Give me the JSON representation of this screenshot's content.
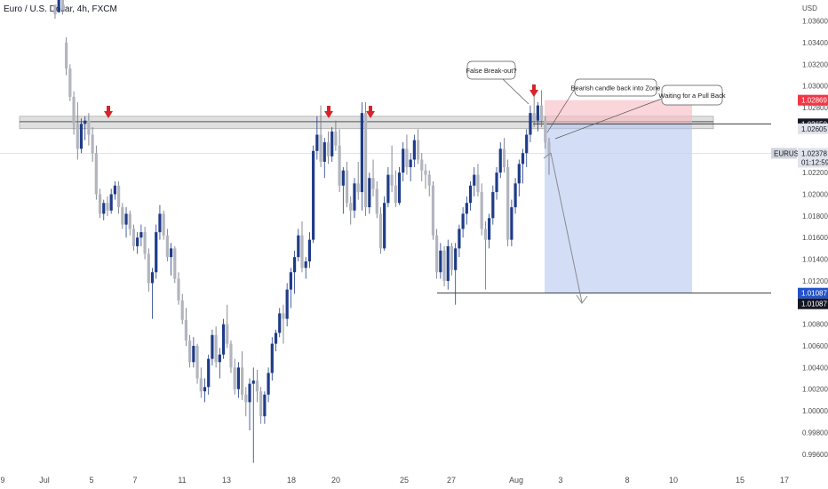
{
  "header": {
    "title": "Euro / U.S. Dollar, 4h, FXCM",
    "currency": "USD"
  },
  "annotations": {
    "false_breakout": "False Break-out?",
    "bearish_candle": "Bearish candle back into Zone",
    "waiting_pullback": "Waiting for a Pull Back"
  },
  "price_labels": {
    "stop": "1.02869",
    "entry": "1.02650",
    "zone_low": "1.02605",
    "symbol": "EURUSD",
    "last_price": "1.02378",
    "countdown": "01:12:59",
    "target_blue": "1.01087",
    "target_dark": "1.01087"
  },
  "colors": {
    "bull_candle": "#1f3c88",
    "bear_candle": "#b2b5be",
    "arrow": "#d8232a",
    "stop_zone": "#f7b9c1",
    "target_zone": "#aec3ee",
    "resistance_zone": "#c9c9c9",
    "stop_label": "#f23645",
    "target_label": "#2453c8",
    "dark_label": "#131722"
  },
  "chart_data": {
    "type": "candlestick",
    "title": "Euro / U.S. Dollar, 4h, FXCM",
    "ylabel": "USD",
    "ylim": [
      0.995,
      1.0372
    ],
    "y_ticks": [
      "1.03600",
      "1.03400",
      "1.03200",
      "1.03000",
      "1.02800",
      "1.02600",
      "1.02400",
      "1.02200",
      "1.02000",
      "1.01800",
      "1.01600",
      "1.01400",
      "1.01200",
      "1.01000",
      "1.00800",
      "1.00600",
      "1.00400",
      "1.00200",
      "1.00000",
      "0.99800",
      "0.99600"
    ],
    "x_ticks": [
      "9",
      "Jul",
      "5",
      "7",
      "11",
      "13",
      "18",
      "20",
      "25",
      "27",
      "Aug",
      "3",
      "8",
      "10",
      "15",
      "17"
    ],
    "resistance_zone": [
      1.02605,
      1.0272
    ],
    "entry": 1.0265,
    "stop": 1.02869,
    "target": 1.01087,
    "last_price": 1.02378,
    "arrows_at": [
      "Jul 5",
      "Jul 19",
      "Jul 21",
      "Aug 2"
    ],
    "candles": [
      [
        1.0375,
        1.0375,
        1.0362,
        1.0366
      ],
      [
        1.0368,
        1.0382,
        1.0368,
        1.038
      ],
      [
        1.038,
        1.0382,
        1.0366,
        1.037
      ],
      [
        1.034,
        1.0345,
        1.031,
        1.0316
      ],
      [
        1.0316,
        1.032,
        1.0286,
        1.029
      ],
      [
        1.029,
        1.0295,
        1.0255,
        1.0265
      ],
      [
        1.0265,
        1.0285,
        1.0232,
        1.0242
      ],
      [
        1.0242,
        1.027,
        1.0238,
        1.0265
      ],
      [
        1.0265,
        1.0272,
        1.025,
        1.0268
      ],
      [
        1.0268,
        1.0275,
        1.0245,
        1.0255
      ],
      [
        1.0255,
        1.0262,
        1.023,
        1.0238
      ],
      [
        1.0238,
        1.0245,
        1.0195,
        1.02
      ],
      [
        1.02,
        1.0205,
        1.0178,
        1.0182
      ],
      [
        1.0182,
        1.0195,
        1.0176,
        1.0192
      ],
      [
        1.0192,
        1.0198,
        1.018,
        1.0185
      ],
      [
        1.0185,
        1.0205,
        1.0182,
        1.02
      ],
      [
        1.02,
        1.0212,
        1.0195,
        1.0208
      ],
      [
        1.0208,
        1.0212,
        1.0182,
        1.0188
      ],
      [
        1.0188,
        1.0192,
        1.0168,
        1.0172
      ],
      [
        1.0172,
        1.0188,
        1.016,
        1.0182
      ],
      [
        1.0182,
        1.0185,
        1.0162,
        1.0168
      ],
      [
        1.0168,
        1.0172,
        1.0148,
        1.0152
      ],
      [
        1.0152,
        1.0165,
        1.0145,
        1.016
      ],
      [
        1.016,
        1.0172,
        1.0152,
        1.0165
      ],
      [
        1.0165,
        1.017,
        1.014,
        1.0145
      ],
      [
        1.0145,
        1.015,
        1.011,
        1.0118
      ],
      [
        1.0118,
        1.0132,
        1.0085,
        1.0128
      ],
      [
        1.0128,
        1.0172,
        1.0122,
        1.0165
      ],
      [
        1.0165,
        1.019,
        1.0158,
        1.0182
      ],
      [
        1.0182,
        1.0185,
        1.0158,
        1.0162
      ],
      [
        1.0162,
        1.0168,
        1.0138,
        1.0142
      ],
      [
        1.0142,
        1.0155,
        1.0125,
        1.015
      ],
      [
        1.015,
        1.0152,
        1.0118,
        1.0122
      ],
      [
        1.0122,
        1.0128,
        1.0098,
        1.0102
      ],
      [
        1.0102,
        1.0108,
        1.008,
        1.0084
      ],
      [
        1.0084,
        1.0095,
        1.006,
        1.0065
      ],
      [
        1.0065,
        1.007,
        1.004,
        1.0045
      ],
      [
        1.0045,
        1.0068,
        1.004,
        1.006
      ],
      [
        1.006,
        1.0062,
        1.0025,
        1.003
      ],
      [
        1.003,
        1.004,
        1.0012,
        1.0018
      ],
      [
        1.0018,
        1.003,
        1.0008,
        1.0022
      ],
      [
        1.0022,
        1.0052,
        1.0015,
        1.0048
      ],
      [
        1.0048,
        1.0075,
        1.0042,
        1.007
      ],
      [
        1.007,
        1.0078,
        1.004,
        1.0045
      ],
      [
        1.0045,
        1.0058,
        1.003,
        1.0052
      ],
      [
        1.0052,
        1.0085,
        1.0048,
        1.008
      ],
      [
        1.008,
        1.0098,
        1.0058,
        1.0062
      ],
      [
        1.0062,
        1.0065,
        1.0035,
        1.004
      ],
      [
        1.004,
        1.0048,
        1.0015,
        1.002
      ],
      [
        1.002,
        1.0045,
        1.0012,
        1.004
      ],
      [
        1.004,
        1.0055,
        1.001,
        1.0015
      ],
      [
        1.0015,
        1.0022,
        0.9995,
        1.0008
      ],
      [
        1.0008,
        1.003,
        0.9982,
        1.0025
      ],
      [
        1.0025,
        1.004,
        0.9952,
        1.0028
      ],
      [
        1.0028,
        1.0038,
        1.0008,
        1.0018
      ],
      [
        1.0018,
        1.0022,
        0.9988,
        0.9995
      ],
      [
        0.9995,
        1.0018,
        0.9988,
        1.0015
      ],
      [
        1.0015,
        1.004,
        1.0008,
        1.0035
      ],
      [
        1.0035,
        1.0068,
        1.0028,
        1.0062
      ],
      [
        1.0062,
        1.0075,
        1.0055,
        1.0072
      ],
      [
        1.0072,
        1.0095,
        1.0068,
        1.009
      ],
      [
        1.009,
        1.0098,
        1.0062,
        1.0085
      ],
      [
        1.0085,
        1.0118,
        1.0078,
        1.0112
      ],
      [
        1.0112,
        1.0132,
        1.0095,
        1.0128
      ],
      [
        1.0128,
        1.0148,
        1.0108,
        1.0142
      ],
      [
        1.0142,
        1.0168,
        1.0138,
        1.0162
      ],
      [
        1.0162,
        1.0175,
        1.0128,
        1.0132
      ],
      [
        1.0132,
        1.0142,
        1.0122,
        1.0138
      ],
      [
        1.0138,
        1.0165,
        1.0132,
        1.0158
      ],
      [
        1.0158,
        1.0245,
        1.0155,
        1.024
      ],
      [
        1.024,
        1.0272,
        1.0232,
        1.0255
      ],
      [
        1.0255,
        1.0282,
        1.0225,
        1.023
      ],
      [
        1.023,
        1.0252,
        1.0215,
        1.0248
      ],
      [
        1.0248,
        1.0258,
        1.0228,
        1.0235
      ],
      [
        1.0235,
        1.0262,
        1.023,
        1.0258
      ],
      [
        1.0258,
        1.0268,
        1.024,
        1.0245
      ],
      [
        1.0245,
        1.026,
        1.0202,
        1.0208
      ],
      [
        1.0208,
        1.0225,
        1.0182,
        1.0222
      ],
      [
        1.0222,
        1.023,
        1.0188,
        1.0192
      ],
      [
        1.0192,
        1.0198,
        1.0172,
        1.0185
      ],
      [
        1.0185,
        1.0215,
        1.0178,
        1.021
      ],
      [
        1.021,
        1.023,
        1.0195,
        1.0202
      ],
      [
        1.0202,
        1.0285,
        1.0185,
        1.0275
      ],
      [
        1.0275,
        1.0285,
        1.018,
        1.0188
      ],
      [
        1.0188,
        1.022,
        1.0182,
        1.0215
      ],
      [
        1.0215,
        1.0232,
        1.0198,
        1.0205
      ],
      [
        1.0205,
        1.0212,
        1.0178,
        1.0182
      ],
      [
        1.0182,
        1.0188,
        1.0145,
        1.015
      ],
      [
        1.015,
        1.0198,
        1.0148,
        1.0192
      ],
      [
        1.0192,
        1.0225,
        1.0188,
        1.0218
      ],
      [
        1.0218,
        1.0245,
        1.0202,
        1.0208
      ],
      [
        1.0208,
        1.0222,
        1.0188,
        1.0192
      ],
      [
        1.0192,
        1.0225,
        1.019,
        1.022
      ],
      [
        1.022,
        1.0248,
        1.0212,
        1.0242
      ],
      [
        1.0242,
        1.0255,
        1.0218,
        1.0225
      ],
      [
        1.0225,
        1.0238,
        1.0212,
        1.0232
      ],
      [
        1.0232,
        1.0255,
        1.0225,
        1.025
      ],
      [
        1.025,
        1.026,
        1.0228,
        1.0232
      ],
      [
        1.0232,
        1.0238,
        1.0212,
        1.0222
      ],
      [
        1.0222,
        1.0228,
        1.0205,
        1.0218
      ],
      [
        1.0218,
        1.0222,
        1.0198,
        1.0208
      ],
      [
        1.0208,
        1.0212,
        1.0158,
        1.0162
      ],
      [
        1.0162,
        1.0168,
        1.0122,
        1.0128
      ],
      [
        1.0128,
        1.0155,
        1.0122,
        1.0148
      ],
      [
        1.0148,
        1.0152,
        1.0115,
        1.012
      ],
      [
        1.012,
        1.0158,
        1.0112,
        1.0152
      ],
      [
        1.0152,
        1.0155,
        1.0125,
        1.013
      ],
      [
        1.013,
        1.0155,
        1.0098,
        1.015
      ],
      [
        1.015,
        1.0172,
        1.0142,
        1.0168
      ],
      [
        1.0168,
        1.0188,
        1.016,
        1.0182
      ],
      [
        1.0182,
        1.0198,
        1.0172,
        1.0192
      ],
      [
        1.0192,
        1.0212,
        1.0185,
        1.0208
      ],
      [
        1.0208,
        1.0225,
        1.0198,
        1.0218
      ],
      [
        1.0218,
        1.0228,
        1.0198,
        1.0202
      ],
      [
        1.0202,
        1.021,
        1.0162,
        1.0168
      ],
      [
        1.0168,
        1.0175,
        1.0112,
        1.0158
      ],
      [
        1.0158,
        1.0182,
        1.015,
        1.0178
      ],
      [
        1.0178,
        1.0208,
        1.0172,
        1.0202
      ],
      [
        1.0202,
        1.0225,
        1.0195,
        1.022
      ],
      [
        1.022,
        1.0248,
        1.0215,
        1.0242
      ],
      [
        1.0242,
        1.0252,
        1.022,
        1.0225
      ],
      [
        1.0225,
        1.0232,
        1.0152,
        1.0158
      ],
      [
        1.0158,
        1.0195,
        1.0152,
        1.0188
      ],
      [
        1.0188,
        1.0215,
        1.0182,
        1.021
      ],
      [
        1.021,
        1.0232,
        1.0198,
        1.0228
      ],
      [
        1.0228,
        1.0242,
        1.021,
        1.0238
      ],
      [
        1.0238,
        1.026,
        1.0225,
        1.0255
      ],
      [
        1.0255,
        1.0282,
        1.0248,
        1.0275
      ],
      [
        1.0275,
        1.0292,
        1.0262,
        1.0268
      ],
      [
        1.0268,
        1.0285,
        1.0258,
        1.0282
      ],
      [
        1.0282,
        1.0296,
        1.0262,
        1.0268
      ],
      [
        1.0268,
        1.0272,
        1.0242,
        1.0248
      ],
      [
        1.0248,
        1.0252,
        1.0218,
        1.0235
      ]
    ]
  }
}
